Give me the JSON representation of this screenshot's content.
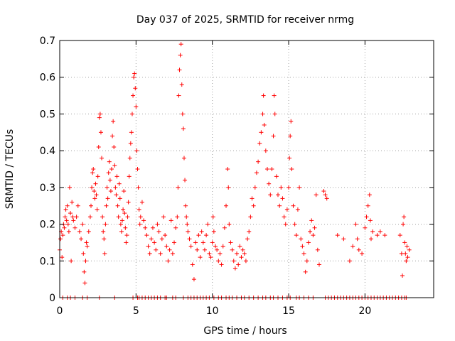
{
  "chart_data": {
    "type": "scatter",
    "title": "Day 037 of 2025, SRMTID for receiver nrmg",
    "xlabel": "GPS time / hours",
    "ylabel": "SRMTID / TECUs",
    "xlim": [
      0,
      24.5
    ],
    "ylim": [
      0,
      0.7
    ],
    "xticks": [
      0,
      5,
      10,
      15,
      20
    ],
    "xtick_labels": [
      "0",
      "5",
      "10",
      "15",
      "20"
    ],
    "yticks": [
      0,
      0.1,
      0.2,
      0.3,
      0.4,
      0.5,
      0.6,
      0.7
    ],
    "ytick_labels": [
      "0",
      "0.1",
      "0.2",
      "0.3",
      "0.4",
      "0.5",
      "0.6",
      "0.7"
    ],
    "grid": true,
    "marker": "+",
    "color": "#ff0000",
    "series": [
      {
        "name": "SRMTID",
        "points": [
          [
            0.0,
            0.13
          ],
          [
            0.05,
            0.16
          ],
          [
            0.1,
            0.18
          ],
          [
            0.15,
            0.11
          ],
          [
            0.2,
            0.17
          ],
          [
            0.25,
            0.2
          ],
          [
            0.3,
            0.19
          ],
          [
            0.35,
            0.22
          ],
          [
            0.4,
            0.24
          ],
          [
            0.45,
            0.21
          ],
          [
            0.5,
            0.25
          ],
          [
            0.55,
            0.2
          ],
          [
            0.6,
            0.18
          ],
          [
            0.65,
            0.3
          ],
          [
            0.7,
            0.23
          ],
          [
            0.75,
            0.1
          ],
          [
            0.8,
            0.26
          ],
          [
            0.85,
            0.22
          ],
          [
            0.9,
            0.21
          ],
          [
            1.0,
            0.19
          ],
          [
            1.1,
            0.22
          ],
          [
            1.2,
            0.25
          ],
          [
            1.3,
            0.18
          ],
          [
            1.4,
            0.16
          ],
          [
            1.5,
            0.2
          ],
          [
            1.55,
            0.12
          ],
          [
            1.6,
            0.07
          ],
          [
            1.65,
            0.04
          ],
          [
            1.7,
            0.1
          ],
          [
            1.75,
            0.15
          ],
          [
            1.8,
            0.14
          ],
          [
            1.9,
            0.18
          ],
          [
            2.0,
            0.22
          ],
          [
            2.05,
            0.25
          ],
          [
            2.1,
            0.3
          ],
          [
            2.15,
            0.34
          ],
          [
            2.2,
            0.35
          ],
          [
            2.25,
            0.29
          ],
          [
            2.3,
            0.27
          ],
          [
            2.35,
            0.31
          ],
          [
            2.4,
            0.28
          ],
          [
            2.45,
            0.24
          ],
          [
            2.5,
            0.33
          ],
          [
            2.55,
            0.41
          ],
          [
            2.6,
            0.49
          ],
          [
            2.65,
            0.5
          ],
          [
            2.7,
            0.45
          ],
          [
            2.75,
            0.38
          ],
          [
            2.8,
            0.22
          ],
          [
            2.85,
            0.18
          ],
          [
            2.9,
            0.16
          ],
          [
            2.95,
            0.12
          ],
          [
            3.0,
            0.2
          ],
          [
            3.05,
            0.25
          ],
          [
            3.1,
            0.3
          ],
          [
            3.15,
            0.27
          ],
          [
            3.2,
            0.34
          ],
          [
            3.25,
            0.37
          ],
          [
            3.3,
            0.32
          ],
          [
            3.35,
            0.29
          ],
          [
            3.4,
            0.35
          ],
          [
            3.45,
            0.44
          ],
          [
            3.5,
            0.48
          ],
          [
            3.55,
            0.41
          ],
          [
            3.6,
            0.36
          ],
          [
            3.65,
            0.3
          ],
          [
            3.7,
            0.28
          ],
          [
            3.75,
            0.33
          ],
          [
            3.8,
            0.25
          ],
          [
            3.85,
            0.22
          ],
          [
            3.9,
            0.31
          ],
          [
            3.95,
            0.27
          ],
          [
            4.0,
            0.2
          ],
          [
            4.05,
            0.18
          ],
          [
            4.1,
            0.21
          ],
          [
            4.15,
            0.24
          ],
          [
            4.2,
            0.29
          ],
          [
            4.25,
            0.23
          ],
          [
            4.3,
            0.19
          ],
          [
            4.35,
            0.15
          ],
          [
            4.4,
            0.17
          ],
          [
            4.45,
            0.22
          ],
          [
            4.5,
            0.26
          ],
          [
            4.55,
            0.33
          ],
          [
            4.6,
            0.38
          ],
          [
            4.65,
            0.42
          ],
          [
            4.7,
            0.45
          ],
          [
            4.75,
            0.5
          ],
          [
            4.8,
            0.55
          ],
          [
            4.85,
            0.6
          ],
          [
            4.9,
            0.61
          ],
          [
            4.95,
            0.57
          ],
          [
            5.0,
            0.52
          ],
          [
            5.05,
            0.4
          ],
          [
            5.1,
            0.35
          ],
          [
            5.15,
            0.3
          ],
          [
            5.2,
            0.24
          ],
          [
            5.25,
            0.2
          ],
          [
            5.3,
            0.22
          ],
          [
            5.4,
            0.26
          ],
          [
            5.5,
            0.21
          ],
          [
            5.6,
            0.19
          ],
          [
            5.7,
            0.17
          ],
          [
            5.8,
            0.14
          ],
          [
            5.9,
            0.12
          ],
          [
            6.0,
            0.16
          ],
          [
            6.1,
            0.19
          ],
          [
            6.2,
            0.15
          ],
          [
            6.3,
            0.13
          ],
          [
            6.4,
            0.2
          ],
          [
            6.5,
            0.18
          ],
          [
            6.6,
            0.12
          ],
          [
            6.7,
            0.16
          ],
          [
            6.8,
            0.22
          ],
          [
            6.9,
            0.17
          ],
          [
            7.0,
            0.14
          ],
          [
            7.1,
            0.1
          ],
          [
            7.2,
            0.13
          ],
          [
            7.3,
            0.21
          ],
          [
            7.4,
            0.12
          ],
          [
            7.5,
            0.15
          ],
          [
            7.6,
            0.19
          ],
          [
            7.7,
            0.22
          ],
          [
            7.75,
            0.3
          ],
          [
            7.8,
            0.55
          ],
          [
            7.85,
            0.62
          ],
          [
            7.9,
            0.66
          ],
          [
            7.95,
            0.69
          ],
          [
            8.0,
            0.58
          ],
          [
            8.05,
            0.5
          ],
          [
            8.1,
            0.46
          ],
          [
            8.15,
            0.38
          ],
          [
            8.2,
            0.32
          ],
          [
            8.25,
            0.25
          ],
          [
            8.3,
            0.22
          ],
          [
            8.35,
            0.2
          ],
          [
            8.4,
            0.18
          ],
          [
            8.5,
            0.16
          ],
          [
            8.6,
            0.14
          ],
          [
            8.7,
            0.09
          ],
          [
            8.8,
            0.05
          ],
          [
            8.9,
            0.15
          ],
          [
            9.0,
            0.13
          ],
          [
            9.1,
            0.17
          ],
          [
            9.2,
            0.11
          ],
          [
            9.3,
            0.18
          ],
          [
            9.4,
            0.15
          ],
          [
            9.5,
            0.13
          ],
          [
            9.6,
            0.17
          ],
          [
            9.7,
            0.2
          ],
          [
            9.8,
            0.12
          ],
          [
            9.9,
            0.11
          ],
          [
            10.0,
            0.15
          ],
          [
            10.05,
            0.22
          ],
          [
            10.1,
            0.18
          ],
          [
            10.2,
            0.14
          ],
          [
            10.3,
            0.13
          ],
          [
            10.4,
            0.1
          ],
          [
            10.5,
            0.12
          ],
          [
            10.6,
            0.09
          ],
          [
            10.7,
            0.14
          ],
          [
            10.8,
            0.19
          ],
          [
            10.9,
            0.25
          ],
          [
            11.0,
            0.35
          ],
          [
            11.05,
            0.3
          ],
          [
            11.1,
            0.2
          ],
          [
            11.2,
            0.15
          ],
          [
            11.3,
            0.13
          ],
          [
            11.4,
            0.1
          ],
          [
            11.5,
            0.08
          ],
          [
            11.6,
            0.12
          ],
          [
            11.7,
            0.09
          ],
          [
            11.8,
            0.14
          ],
          [
            11.9,
            0.11
          ],
          [
            12.0,
            0.13
          ],
          [
            12.1,
            0.12
          ],
          [
            12.2,
            0.1
          ],
          [
            12.3,
            0.16
          ],
          [
            12.4,
            0.18
          ],
          [
            12.5,
            0.22
          ],
          [
            12.6,
            0.27
          ],
          [
            12.7,
            0.25
          ],
          [
            12.8,
            0.3
          ],
          [
            12.9,
            0.34
          ],
          [
            13.0,
            0.37
          ],
          [
            13.1,
            0.42
          ],
          [
            13.2,
            0.45
          ],
          [
            13.3,
            0.5
          ],
          [
            13.35,
            0.55
          ],
          [
            13.4,
            0.47
          ],
          [
            13.5,
            0.4
          ],
          [
            13.6,
            0.35
          ],
          [
            13.7,
            0.31
          ],
          [
            13.8,
            0.28
          ],
          [
            13.9,
            0.35
          ],
          [
            14.0,
            0.44
          ],
          [
            14.05,
            0.55
          ],
          [
            14.1,
            0.5
          ],
          [
            14.2,
            0.33
          ],
          [
            14.3,
            0.28
          ],
          [
            14.4,
            0.25
          ],
          [
            14.5,
            0.3
          ],
          [
            14.6,
            0.27
          ],
          [
            14.7,
            0.22
          ],
          [
            14.8,
            0.2
          ],
          [
            14.9,
            0.24
          ],
          [
            15.0,
            0.3
          ],
          [
            15.05,
            0.38
          ],
          [
            15.1,
            0.44
          ],
          [
            15.15,
            0.48
          ],
          [
            15.2,
            0.35
          ],
          [
            15.3,
            0.25
          ],
          [
            15.4,
            0.2
          ],
          [
            15.5,
            0.17
          ],
          [
            15.6,
            0.24
          ],
          [
            15.7,
            0.3
          ],
          [
            15.8,
            0.16
          ],
          [
            15.9,
            0.14
          ],
          [
            16.0,
            0.12
          ],
          [
            16.1,
            0.07
          ],
          [
            16.2,
            0.1
          ],
          [
            16.3,
            0.15
          ],
          [
            16.4,
            0.18
          ],
          [
            16.5,
            0.21
          ],
          [
            16.6,
            0.17
          ],
          [
            16.7,
            0.19
          ],
          [
            16.8,
            0.28
          ],
          [
            16.9,
            0.13
          ],
          [
            17.0,
            0.09
          ],
          [
            17.3,
            0.29
          ],
          [
            17.4,
            0.28
          ],
          [
            17.5,
            0.27
          ],
          [
            18.2,
            0.17
          ],
          [
            18.6,
            0.16
          ],
          [
            19.0,
            0.1
          ],
          [
            19.2,
            0.14
          ],
          [
            19.4,
            0.2
          ],
          [
            19.5,
            0.16
          ],
          [
            19.6,
            0.13
          ],
          [
            19.8,
            0.12
          ],
          [
            20.0,
            0.19
          ],
          [
            20.1,
            0.22
          ],
          [
            20.2,
            0.25
          ],
          [
            20.3,
            0.28
          ],
          [
            20.35,
            0.21
          ],
          [
            20.4,
            0.16
          ],
          [
            20.5,
            0.18
          ],
          [
            20.8,
            0.17
          ],
          [
            21.0,
            0.18
          ],
          [
            21.3,
            0.17
          ],
          [
            22.3,
            0.17
          ],
          [
            22.4,
            0.12
          ],
          [
            22.45,
            0.06
          ],
          [
            22.5,
            0.2
          ],
          [
            22.55,
            0.22
          ],
          [
            22.6,
            0.15
          ],
          [
            22.65,
            0.12
          ],
          [
            22.7,
            0.1
          ],
          [
            22.75,
            0.14
          ],
          [
            22.8,
            0.11
          ],
          [
            22.9,
            0.13
          ]
        ],
        "zero_points_x": [
          0.2,
          0.5,
          0.7,
          1.0,
          1.5,
          1.8,
          2.6,
          3.6,
          4.8,
          5.1,
          5.2,
          5.4,
          5.6,
          5.8,
          6.0,
          6.2,
          6.4,
          6.6,
          6.9,
          7.0,
          7.4,
          7.6,
          8.1,
          8.4,
          8.6,
          8.8,
          9.0,
          9.2,
          9.4,
          9.6,
          9.8,
          10.1,
          10.4,
          10.6,
          10.9,
          11.1,
          11.3,
          11.6,
          11.9,
          12.1,
          12.4,
          12.7,
          13.0,
          13.3,
          13.5,
          13.8,
          14.0,
          14.3,
          14.6,
          14.9,
          15.1,
          15.5,
          15.7,
          16.0,
          16.3,
          16.6,
          17.4,
          17.6,
          17.8,
          18.0,
          18.2,
          18.4,
          18.6,
          18.8,
          19.0,
          19.2,
          19.4,
          19.6,
          19.8,
          20.0,
          20.2,
          20.4,
          20.6,
          20.8,
          21.0,
          21.2,
          21.4,
          21.6,
          21.8,
          22.0,
          22.2,
          22.4,
          22.6,
          22.7
        ]
      }
    ]
  }
}
